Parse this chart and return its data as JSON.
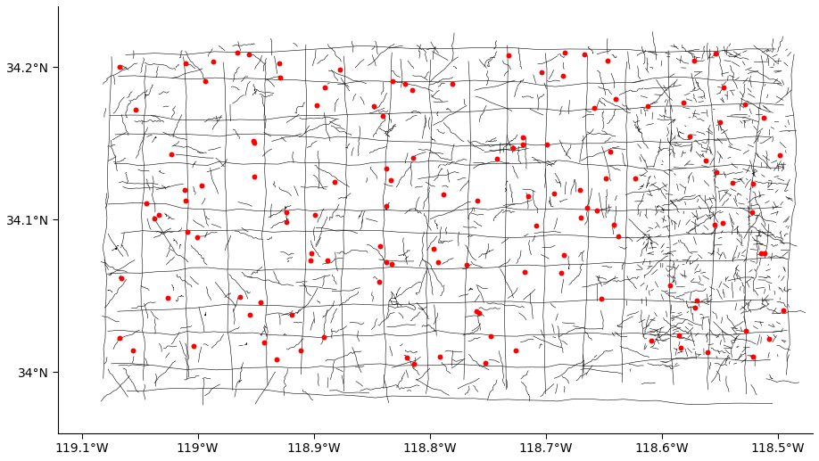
{
  "xlim": [
    -119.12,
    -118.47
  ],
  "ylim": [
    33.96,
    34.24
  ],
  "xticks": [
    -119.1,
    -119.0,
    -118.9,
    -118.8,
    -118.7,
    -118.6,
    -118.5
  ],
  "yticks": [
    34.0,
    34.1,
    34.2
  ],
  "xlabel_labels": [
    "119.1°W",
    "119°W",
    "118.9°W",
    "118.8°W",
    "118.7°W",
    "118.6°W",
    "118.5°W"
  ],
  "ylabel_labels": [
    "34°N",
    "34.1°N",
    "34.2°N"
  ],
  "background_color": "#ffffff",
  "network_color": "#000000",
  "point_color": "#ff0000",
  "point_size": 18,
  "network_linewidth": 0.4,
  "figsize": [
    9.18,
    5.17
  ],
  "dpi": 100,
  "spine_color": "#000000",
  "tick_color": "#000000",
  "font_size": 10,
  "seed": 42,
  "region_bounds": {
    "lon_min": -119.08,
    "lon_max": -118.49,
    "lat_min": 33.985,
    "lat_max": 34.215
  },
  "num_fire_points": 130
}
